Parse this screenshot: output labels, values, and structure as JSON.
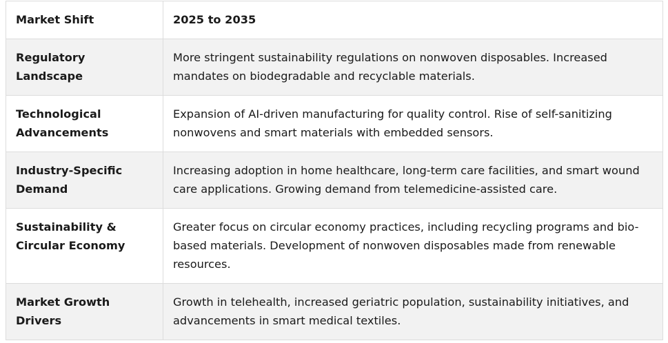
{
  "table": {
    "headers": [
      "Market Shift",
      "2025 to 2035"
    ],
    "rows": [
      {
        "label": "Regulatory Landscape",
        "value": "More stringent sustainability regulations on nonwoven disposables. Increased mandates on biodegradable and recyclable materials."
      },
      {
        "label": "Technological Advancements",
        "value": "Expansion of AI-driven manufacturing for quality control. Rise of self-sanitizing nonwovens and smart materials with embedded sensors."
      },
      {
        "label": "Industry-Specific Demand",
        "value": "Increasing adoption in home healthcare, long-term care facilities, and smart wound care applications. Growing demand from telemedicine-assisted care."
      },
      {
        "label": "Sustainability & Circular Economy",
        "value": "Greater focus on circular economy practices, including recycling programs and bio-based materials. Development of nonwoven disposables made from renewable resources."
      },
      {
        "label": "Market Growth Drivers",
        "value": "Growth in telehealth, increased geriatric population, sustainability initiatives, and advancements in smart medical textiles."
      }
    ]
  }
}
